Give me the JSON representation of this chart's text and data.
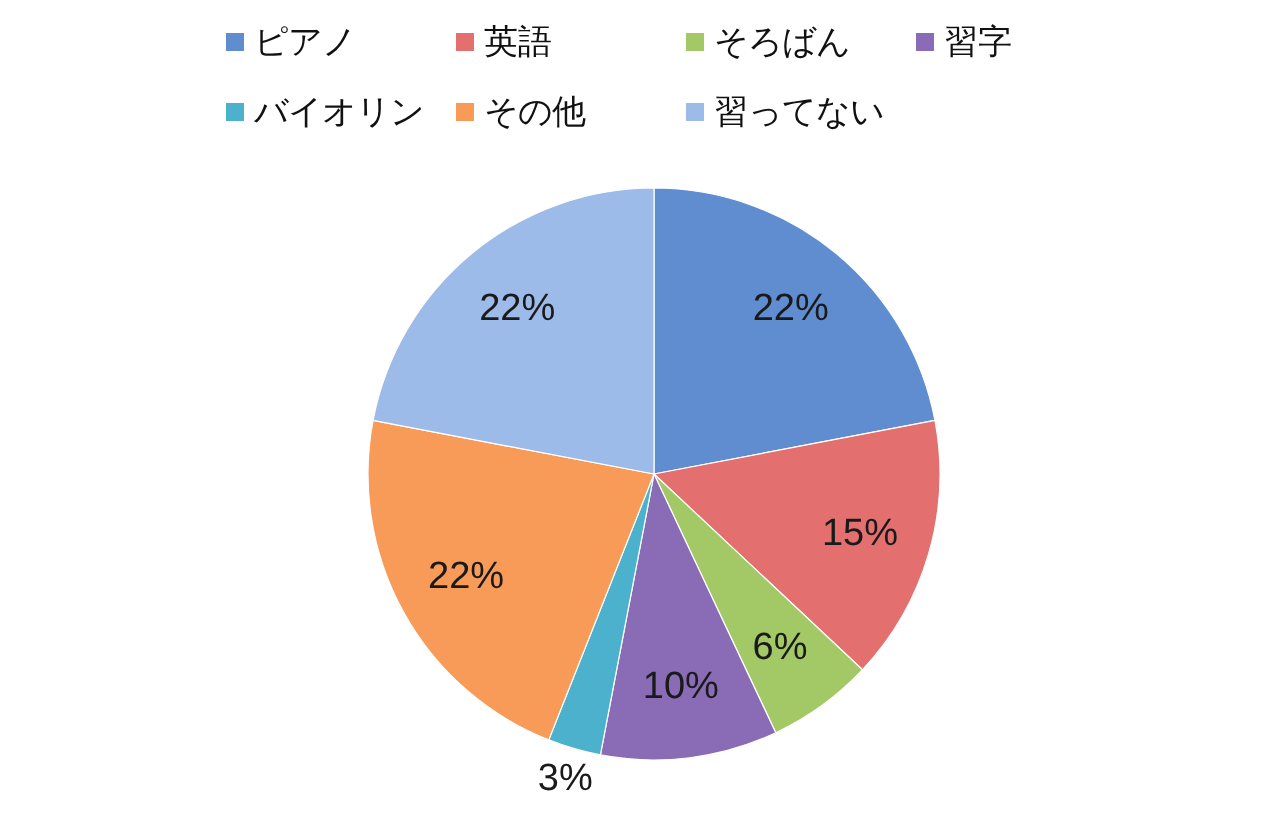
{
  "chart_data": {
    "type": "pie",
    "categories": [
      "ピアノ",
      "英語",
      "そろばん",
      "習字",
      "バイオリン",
      "その他",
      "習ってない"
    ],
    "values": [
      22,
      15,
      6,
      10,
      3,
      22,
      22
    ],
    "value_labels": [
      "22%",
      "15%",
      "6%",
      "10%",
      "3%",
      "22%",
      "22%"
    ],
    "colors": [
      "#5f8dd0",
      "#e3706f",
      "#a3c866",
      "#8a6cb6",
      "#4bb1cc",
      "#f89a58",
      "#9dbbe8"
    ],
    "legend": "top"
  }
}
